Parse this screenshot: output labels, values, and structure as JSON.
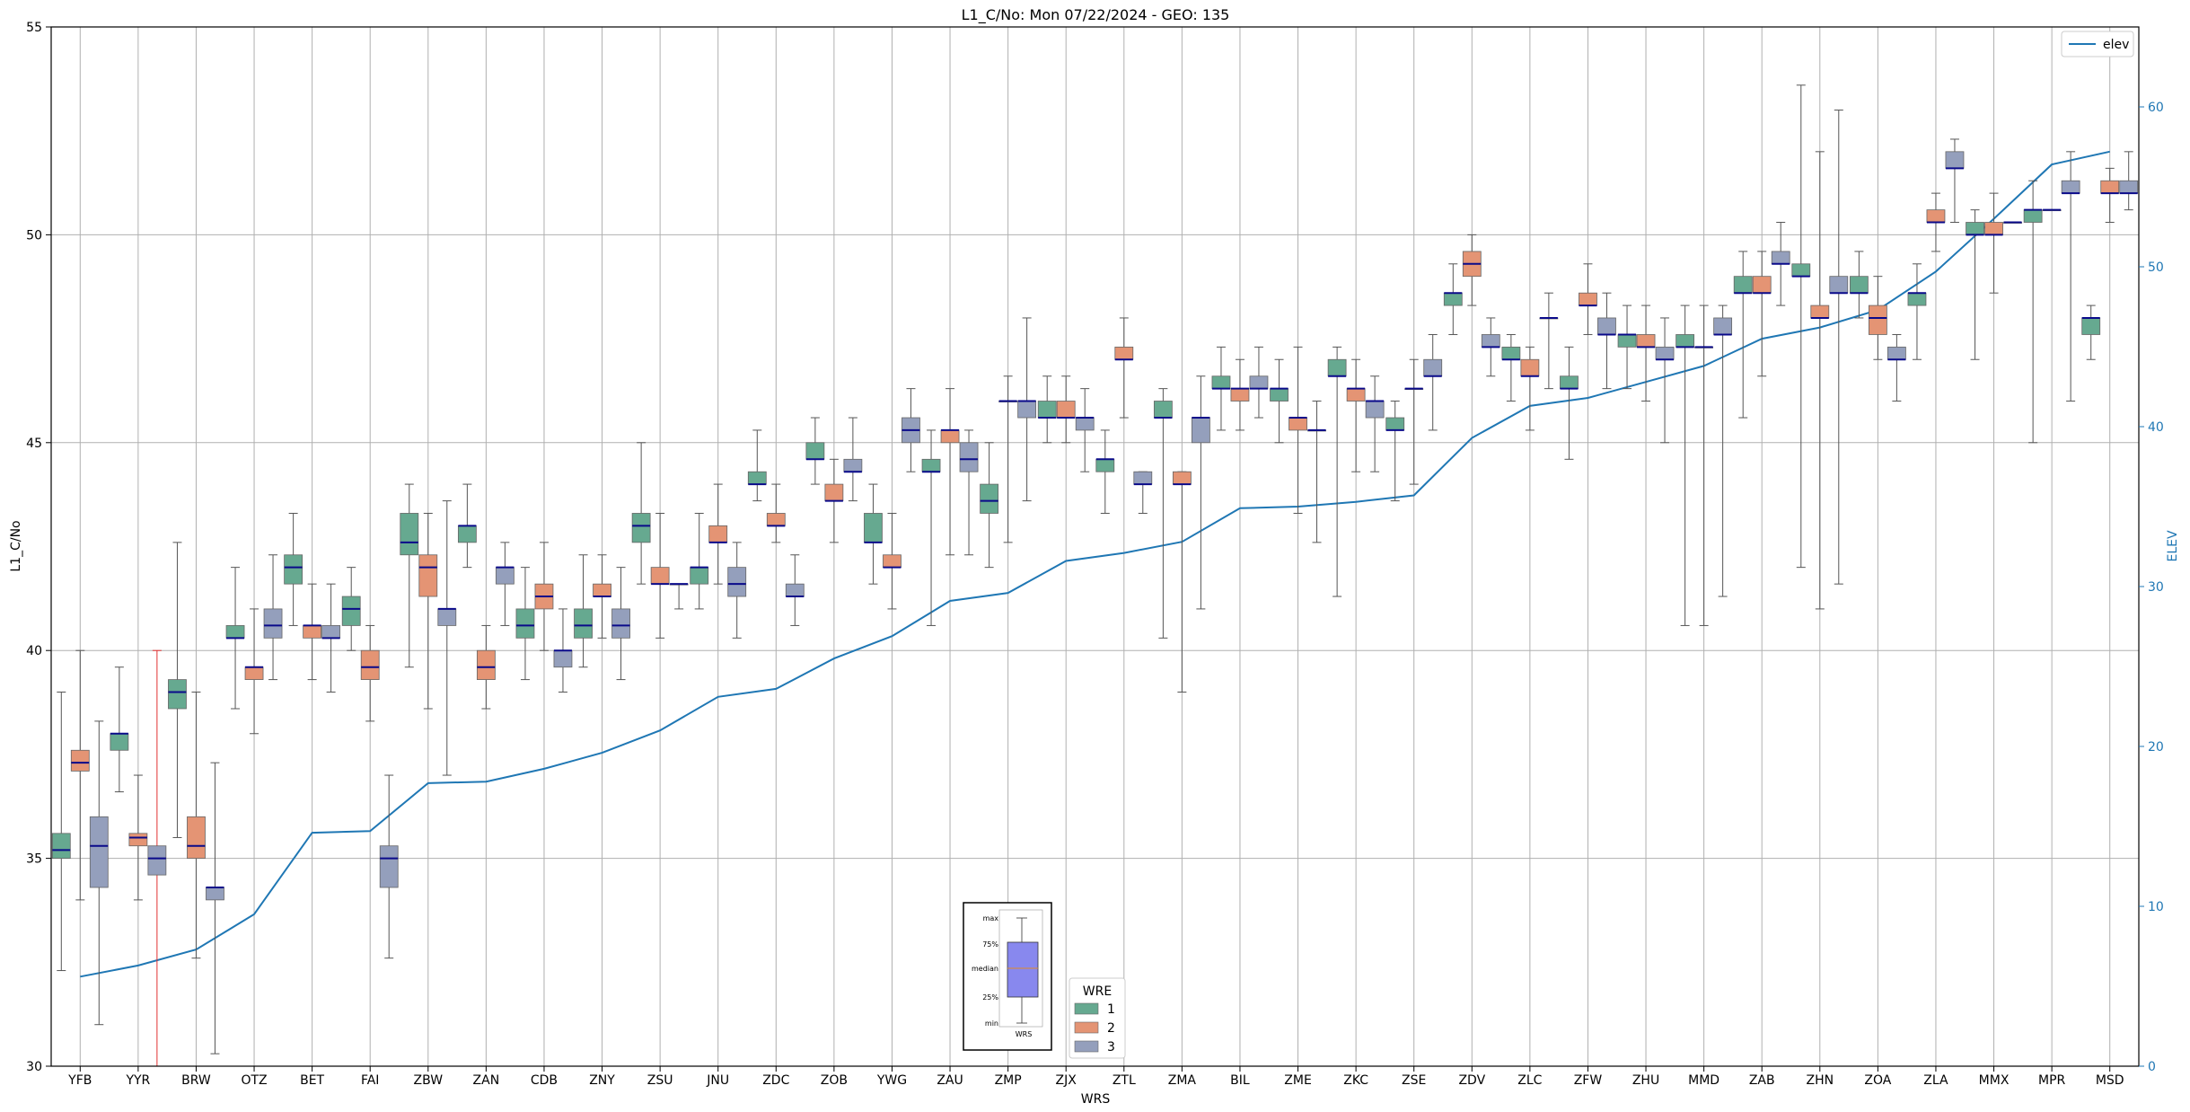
{
  "chart_data": {
    "type": "box",
    "title": "L1_C/No: Mon 07/22/2024 - GEO: 135",
    "xlabel": "WRS",
    "ylabel": "L1_C/No",
    "ylabel_right": "ELEV",
    "ylim": [
      30,
      55
    ],
    "ylim_right": [
      0,
      65
    ],
    "yticks": [
      "30",
      "35",
      "40",
      "45",
      "50",
      "55"
    ],
    "yticks_right": [
      "0",
      "10",
      "20",
      "30",
      "40",
      "50",
      "60"
    ],
    "grid": true,
    "categories": [
      "YFB",
      "YYR",
      "BRW",
      "OTZ",
      "BET",
      "FAI",
      "ZBW",
      "ZAN",
      "CDB",
      "ZNY",
      "ZSU",
      "JNU",
      "ZDC",
      "ZOB",
      "YWG",
      "ZAU",
      "ZMP",
      "ZJX",
      "ZTL",
      "ZMA",
      "BIL",
      "ZME",
      "ZKC",
      "ZSE",
      "ZDV",
      "ZLC",
      "ZFW",
      "ZHU",
      "MMD",
      "ZAB",
      "ZHN",
      "ZOA",
      "ZLA",
      "MMX",
      "MPR",
      "MSD"
    ],
    "legend_title": "WRE",
    "wre_legend": [
      {
        "name": "1",
        "color": "#66a990"
      },
      {
        "name": "2",
        "color": "#e49474"
      },
      {
        "name": "3",
        "color": "#949fbc"
      }
    ],
    "line_legend": {
      "name": "elev",
      "color": "#1f77b4"
    },
    "inset": {
      "labels": [
        "max",
        "75%",
        "median",
        "25%",
        "min"
      ],
      "xlabel": "WRS",
      "box_color": "#8888ee"
    },
    "boxes": [
      [
        [
          32.3,
          35.0,
          35.2,
          35.6,
          39.0
        ],
        [
          34.0,
          37.1,
          37.3,
          37.6,
          40.0
        ],
        [
          31.0,
          34.3,
          35.3,
          36.0,
          38.3
        ]
      ],
      [
        [
          36.6,
          37.6,
          38.0,
          38.0,
          39.6
        ],
        [
          34.0,
          35.3,
          35.5,
          35.6,
          37.0
        ],
        [
          30.0,
          34.6,
          35.0,
          35.3,
          40.0
        ]
      ],
      [
        [
          35.5,
          38.6,
          39.0,
          39.3,
          42.6
        ],
        [
          32.6,
          35.0,
          35.3,
          36.0,
          39.0
        ],
        [
          30.3,
          34.0,
          34.3,
          34.3,
          37.3
        ]
      ],
      [
        [
          38.6,
          40.3,
          40.3,
          40.6,
          42.0
        ],
        [
          38.0,
          39.3,
          39.6,
          39.6,
          41.0
        ],
        [
          39.3,
          40.3,
          40.6,
          41.0,
          42.3
        ]
      ],
      [
        [
          40.6,
          41.6,
          42.0,
          42.3,
          43.3
        ],
        [
          39.3,
          40.3,
          40.6,
          40.6,
          41.6
        ],
        [
          39.0,
          40.3,
          40.3,
          40.6,
          41.6
        ]
      ],
      [
        [
          40.0,
          40.6,
          41.0,
          41.3,
          42.0
        ],
        [
          38.3,
          39.3,
          39.6,
          40.0,
          40.6
        ],
        [
          32.6,
          34.3,
          35.0,
          35.3,
          37.0
        ]
      ],
      [
        [
          39.6,
          42.3,
          42.6,
          43.3,
          44.0
        ],
        [
          38.6,
          41.3,
          42.0,
          42.3,
          43.3
        ],
        [
          37.0,
          40.6,
          41.0,
          41.0,
          43.6
        ]
      ],
      [
        [
          42.0,
          42.6,
          43.0,
          43.0,
          44.0
        ],
        [
          38.6,
          39.3,
          39.6,
          40.0,
          40.6
        ],
        [
          40.6,
          41.6,
          42.0,
          42.0,
          42.6
        ]
      ],
      [
        [
          39.3,
          40.3,
          40.6,
          41.0,
          42.0
        ],
        [
          40.0,
          41.0,
          41.3,
          41.6,
          42.6
        ],
        [
          39.0,
          39.6,
          40.0,
          40.0,
          41.0
        ]
      ],
      [
        [
          39.6,
          40.3,
          40.6,
          41.0,
          42.3
        ],
        [
          40.3,
          41.3,
          41.3,
          41.6,
          42.3
        ],
        [
          39.3,
          40.3,
          40.6,
          41.0,
          42.0
        ]
      ],
      [
        [
          41.6,
          42.6,
          43.0,
          43.3,
          45.0
        ],
        [
          40.3,
          41.6,
          41.6,
          42.0,
          43.3
        ],
        [
          41.0,
          41.6,
          41.6,
          41.6,
          41.6
        ]
      ],
      [
        [
          41.0,
          41.6,
          42.0,
          42.0,
          43.3
        ],
        [
          41.6,
          42.6,
          42.6,
          43.0,
          44.0
        ],
        [
          40.3,
          41.3,
          41.6,
          42.0,
          42.6
        ]
      ],
      [
        [
          43.6,
          44.0,
          44.0,
          44.3,
          45.3
        ],
        [
          42.6,
          43.0,
          43.0,
          43.3,
          44.0
        ],
        [
          40.6,
          41.3,
          41.3,
          41.6,
          42.3
        ]
      ],
      [
        [
          44.0,
          44.6,
          44.6,
          45.0,
          45.6
        ],
        [
          42.6,
          43.6,
          43.6,
          44.0,
          44.6
        ],
        [
          43.6,
          44.3,
          44.3,
          44.6,
          45.6
        ]
      ],
      [
        [
          41.6,
          42.6,
          42.6,
          43.3,
          44.0
        ],
        [
          41.0,
          42.0,
          42.0,
          42.3,
          43.3
        ],
        [
          44.3,
          45.0,
          45.3,
          45.6,
          46.3
        ]
      ],
      [
        [
          40.6,
          44.3,
          44.3,
          44.6,
          45.3
        ],
        [
          42.3,
          45.0,
          45.3,
          45.3,
          46.3
        ],
        [
          42.3,
          44.3,
          44.6,
          45.0,
          45.3
        ]
      ],
      [
        [
          42.0,
          43.3,
          43.6,
          44.0,
          45.0
        ],
        [
          42.6,
          46.0,
          46.0,
          46.0,
          46.6
        ],
        [
          43.6,
          45.6,
          46.0,
          46.0,
          48.0
        ]
      ],
      [
        [
          45.0,
          45.6,
          45.6,
          46.0,
          46.6
        ],
        [
          45.0,
          45.6,
          45.6,
          46.0,
          46.6
        ],
        [
          44.3,
          45.3,
          45.6,
          45.6,
          46.3
        ]
      ],
      [
        [
          43.3,
          44.3,
          44.6,
          44.6,
          45.3
        ],
        [
          45.6,
          47.0,
          47.0,
          47.3,
          48.0
        ],
        [
          43.3,
          44.0,
          44.0,
          44.3,
          44.3
        ]
      ],
      [
        [
          40.3,
          45.6,
          45.6,
          46.0,
          46.3
        ],
        [
          39.0,
          44.0,
          44.0,
          44.3,
          44.3
        ],
        [
          41.0,
          45.0,
          45.6,
          45.6,
          46.6
        ]
      ],
      [
        [
          45.3,
          46.3,
          46.3,
          46.6,
          47.3
        ],
        [
          45.3,
          46.0,
          46.3,
          46.3,
          47.0
        ],
        [
          45.6,
          46.3,
          46.3,
          46.6,
          47.3
        ]
      ],
      [
        [
          45.0,
          46.0,
          46.3,
          46.3,
          47.0
        ],
        [
          43.3,
          45.3,
          45.6,
          45.6,
          47.3
        ],
        [
          42.6,
          45.3,
          45.3,
          45.3,
          46.0
        ]
      ],
      [
        [
          41.3,
          46.6,
          46.6,
          47.0,
          47.3
        ],
        [
          44.3,
          46.0,
          46.3,
          46.3,
          47.0
        ],
        [
          44.3,
          45.6,
          46.0,
          46.0,
          46.6
        ]
      ],
      [
        [
          43.6,
          45.3,
          45.3,
          45.6,
          46.0
        ],
        [
          44.0,
          46.3,
          46.3,
          46.3,
          47.0
        ],
        [
          45.3,
          46.6,
          46.6,
          47.0,
          47.6
        ]
      ],
      [
        [
          47.6,
          48.3,
          48.6,
          48.6,
          49.3
        ],
        [
          48.3,
          49.0,
          49.3,
          49.6,
          50.0
        ],
        [
          46.6,
          47.3,
          47.3,
          47.6,
          48.0
        ]
      ],
      [
        [
          46.0,
          47.0,
          47.0,
          47.3,
          47.6
        ],
        [
          45.3,
          46.6,
          46.6,
          47.0,
          47.3
        ],
        [
          46.3,
          48.0,
          48.0,
          48.0,
          48.6
        ]
      ],
      [
        [
          44.6,
          46.3,
          46.3,
          46.6,
          47.3
        ],
        [
          47.6,
          48.3,
          48.3,
          48.6,
          49.3
        ],
        [
          46.3,
          47.6,
          47.6,
          48.0,
          48.6
        ]
      ],
      [
        [
          46.3,
          47.3,
          47.6,
          47.6,
          48.3
        ],
        [
          46.0,
          47.3,
          47.3,
          47.6,
          48.3
        ],
        [
          45.0,
          47.0,
          47.0,
          47.3,
          48.0
        ]
      ],
      [
        [
          40.6,
          47.3,
          47.3,
          47.6,
          48.3
        ],
        [
          40.6,
          47.3,
          47.3,
          47.3,
          48.3
        ],
        [
          41.3,
          47.6,
          47.6,
          48.0,
          48.3
        ]
      ],
      [
        [
          45.6,
          48.6,
          48.6,
          49.0,
          49.6
        ],
        [
          46.6,
          48.6,
          48.6,
          49.0,
          49.6
        ],
        [
          48.3,
          49.3,
          49.3,
          49.6,
          50.3
        ]
      ],
      [
        [
          42.0,
          49.0,
          49.0,
          49.3,
          53.6
        ],
        [
          41.0,
          48.0,
          48.0,
          48.3,
          52.0
        ],
        [
          41.6,
          48.6,
          48.6,
          49.0,
          53.0
        ]
      ],
      [
        [
          48.0,
          48.6,
          48.6,
          49.0,
          49.6
        ],
        [
          47.0,
          47.6,
          48.0,
          48.3,
          49.0
        ],
        [
          46.0,
          47.0,
          47.0,
          47.3,
          47.6
        ]
      ],
      [
        [
          47.0,
          48.3,
          48.6,
          48.6,
          49.3
        ],
        [
          49.6,
          50.3,
          50.3,
          50.6,
          51.0
        ],
        [
          50.3,
          51.6,
          51.6,
          52.0,
          52.3
        ]
      ],
      [
        [
          47.0,
          50.0,
          50.0,
          50.3,
          50.6
        ],
        [
          48.6,
          50.0,
          50.0,
          50.3,
          51.0
        ],
        [
          50.3,
          50.3,
          50.3,
          50.3,
          50.3
        ]
      ],
      [
        [
          45.0,
          50.3,
          50.6,
          50.6,
          51.3
        ],
        [
          50.6,
          50.6,
          50.6,
          50.6,
          50.6
        ],
        [
          46.0,
          51.0,
          51.0,
          51.3,
          52.0
        ]
      ],
      [
        [
          47.0,
          47.6,
          48.0,
          48.0,
          48.3
        ],
        [
          50.3,
          51.0,
          51.0,
          51.3,
          51.6
        ],
        [
          50.6,
          51.0,
          51.0,
          51.3,
          52.0
        ]
      ]
    ],
    "elev": [
      5.6,
      6.3,
      7.3,
      9.5,
      14.6,
      14.7,
      17.7,
      17.8,
      18.6,
      19.6,
      21.0,
      23.1,
      23.6,
      25.5,
      26.9,
      29.1,
      29.6,
      31.6,
      32.1,
      32.8,
      34.9,
      35.0,
      35.3,
      35.7,
      39.3,
      41.3,
      41.8,
      42.8,
      43.8,
      45.5,
      46.2,
      47.3,
      49.7,
      53.0,
      56.4,
      57.2
    ]
  }
}
